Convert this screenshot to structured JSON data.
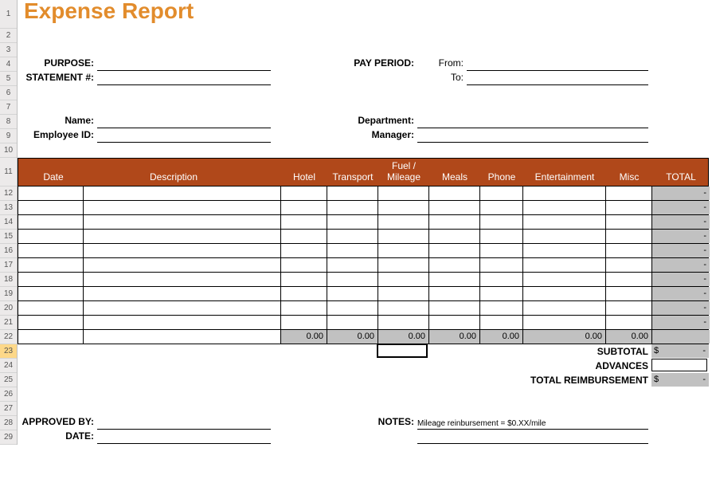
{
  "title": "Expense Report",
  "labels": {
    "purpose": "PURPOSE:",
    "statement": "STATEMENT #:",
    "pay_period": "PAY PERIOD:",
    "from": "From:",
    "to": "To:",
    "name": "Name:",
    "employee_id": "Employee ID:",
    "department": "Department:",
    "manager": "Manager:",
    "approved_by": "APPROVED BY:",
    "date": "DATE:",
    "notes": "NOTES:"
  },
  "values": {
    "purpose": "",
    "statement": "",
    "from": "",
    "to": "",
    "name": "",
    "employee_id": "",
    "department": "",
    "manager": "",
    "approved_by": "",
    "date": "",
    "notes": "Mileage reinbursement = $0.XX/mile"
  },
  "columns": {
    "date": "Date",
    "description": "Description",
    "hotel": "Hotel",
    "transport": "Transport",
    "fuel_top": "Fuel /",
    "fuel_bottom": "Mileage",
    "meals": "Meals",
    "phone": "Phone",
    "entertainment": "Entertainment",
    "misc": "Misc",
    "total": "TOTAL"
  },
  "col_x": {
    "date": 0,
    "description": 82,
    "hotel": 330,
    "transport": 388,
    "fuel": 452,
    "meals": 516,
    "phone": 580,
    "entertainment": 634,
    "misc": 738,
    "total": 796,
    "end": 868
  },
  "row_totals": [
    "-",
    "-",
    "-",
    "-",
    "-",
    "-",
    "-",
    "-",
    "-",
    "-"
  ],
  "col_sums": {
    "hotel": "0.00",
    "transport": "0.00",
    "fuel": "0.00",
    "meals": "0.00",
    "phone": "0.00",
    "entertainment": "0.00",
    "misc": "0.00"
  },
  "summary": {
    "subtotal_label": "SUBTOTAL",
    "subtotal_dollar": "$",
    "subtotal_value": "-",
    "advances_label": "ADVANCES",
    "advances_value": "",
    "total_label": "TOTAL REIMBURSEMENT",
    "total_dollar": "$",
    "total_value": "-"
  },
  "row_numbers": [
    1,
    2,
    3,
    4,
    5,
    6,
    7,
    8,
    9,
    10,
    11,
    12,
    13,
    14,
    15,
    16,
    17,
    18,
    19,
    20,
    21,
    22,
    23,
    24,
    25,
    26,
    27,
    28,
    29
  ],
  "colors": {
    "title": "#e28c2c",
    "header_bg": "#b0481a",
    "gray": "#c1c1c1"
  }
}
